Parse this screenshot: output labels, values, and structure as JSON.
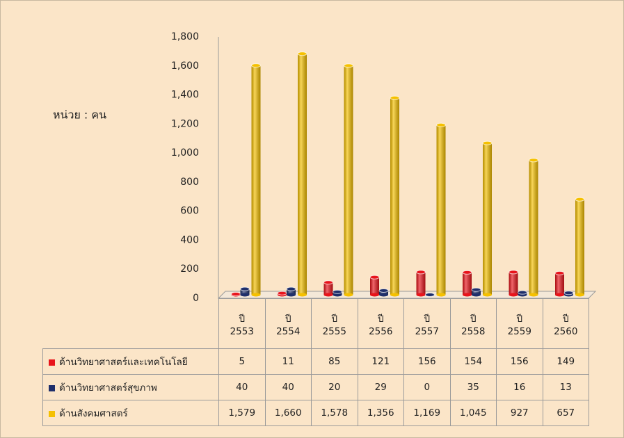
{
  "chart_data": {
    "type": "bar",
    "annotation": "หน่วย : คน",
    "categories": [
      "ปี\n2553",
      "ปี\n2554",
      "ปี\n2555",
      "ปี\n2556",
      "ปี\n2557",
      "ปี\n2558",
      "ปี\n2559",
      "ปี\n2560"
    ],
    "series": [
      {
        "name": "ด้านวิทยาศาสตร์และเทคโนโลยี",
        "color": "#e8141b",
        "values": [
          5,
          11,
          85,
          121,
          156,
          154,
          156,
          149
        ]
      },
      {
        "name": "ด้านวิทยาศาสตร์สุขภาพ",
        "color": "#1f2f6b",
        "values": [
          40,
          40,
          20,
          29,
          0,
          35,
          16,
          13
        ]
      },
      {
        "name": "ด้านสังคมศาสตร์",
        "color": "#f5c000",
        "values": [
          1579,
          1660,
          1578,
          1356,
          1169,
          1045,
          927,
          657
        ],
        "value_labels": [
          "1,579",
          "1,660",
          "1,578",
          "1,356",
          "1,169",
          "1,045",
          "927",
          "657"
        ]
      }
    ],
    "ylim": [
      0,
      1800
    ],
    "yticks": [
      0,
      200,
      400,
      600,
      800,
      {
        "value": 1000,
        "label": "1,000"
      },
      {
        "value": 1200,
        "label": "1,200"
      },
      {
        "value": 1400,
        "label": "1,400"
      },
      {
        "value": 1600,
        "label": "1,600"
      },
      {
        "value": 1800,
        "label": "1,800"
      }
    ]
  }
}
